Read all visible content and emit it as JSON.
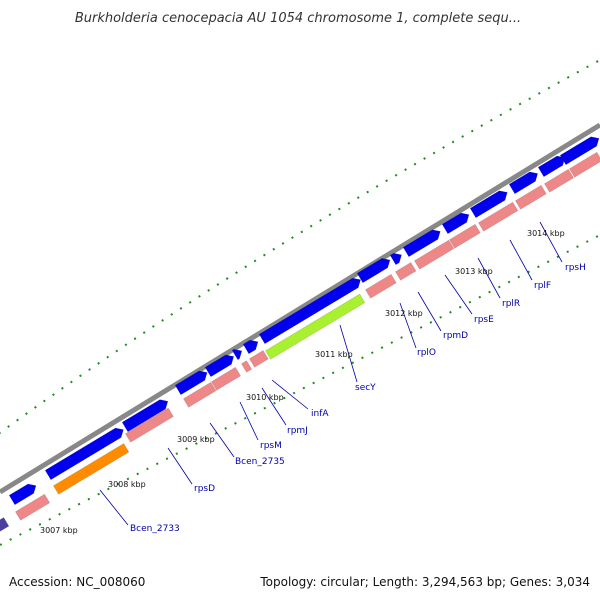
{
  "title": "Burkholderia cenocepacia AU 1054 chromosome 1, complete sequ...",
  "footer": {
    "accession": "Accession: NC_008060",
    "summary": "Topology: circular; Length: 3,294,563 bp; Genes: 3,034"
  },
  "colors": {
    "backbone": "#888888",
    "forward_gene": "#0000ee",
    "reverse_gene": "#ee8888",
    "highlight_green": "#a8f030",
    "highlight_orange": "#ff8c00",
    "dark_gene": "#4b3fa0",
    "gc_dots": "#228b22",
    "label": "#0000aa"
  },
  "scale_ticks": [
    "3007 kbp",
    "3008 kbp",
    "3009 kbp",
    "3010 kbp",
    "3011 kbp",
    "3012 kbp",
    "3013 kbp",
    "3014 kbp"
  ],
  "gene_labels": [
    "Bcen_2733",
    "rpsD",
    "Bcen_2735",
    "rpsM",
    "rpmJ",
    "infA",
    "secY",
    "rplO",
    "rpmD",
    "rpsE",
    "rplR",
    "rplF",
    "rpsH"
  ]
}
